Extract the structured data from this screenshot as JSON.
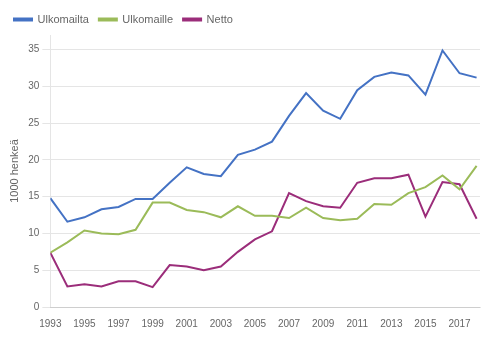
{
  "chart_data": {
    "type": "line",
    "ylabel": "1000 henkeä",
    "x": [
      1993,
      1994,
      1995,
      1996,
      1997,
      1998,
      1999,
      2000,
      2001,
      2002,
      2003,
      2004,
      2005,
      2006,
      2007,
      2008,
      2009,
      2010,
      2011,
      2012,
      2013,
      2014,
      2015,
      2016,
      2017,
      2018
    ],
    "series": [
      {
        "name": "Ulkomailta",
        "color": "#4472c4",
        "values": [
          14.8,
          11.6,
          12.2,
          13.3,
          13.6,
          14.7,
          14.7,
          16.9,
          19.0,
          18.1,
          17.8,
          20.7,
          21.4,
          22.5,
          26.0,
          29.1,
          26.7,
          25.6,
          29.5,
          31.3,
          31.9,
          31.5,
          28.9,
          34.9,
          31.8,
          31.2
        ]
      },
      {
        "name": "Ulkomaille",
        "color": "#9bbb59",
        "values": [
          7.4,
          8.8,
          10.4,
          10.0,
          9.9,
          10.5,
          14.2,
          14.2,
          13.2,
          12.9,
          12.2,
          13.7,
          12.4,
          12.4,
          12.1,
          13.5,
          12.1,
          11.8,
          12.0,
          14.0,
          13.9,
          15.5,
          16.3,
          17.9,
          16.0,
          19.2
        ]
      },
      {
        "name": "Netto",
        "color": "#9b2d7a",
        "values": [
          7.4,
          2.8,
          3.1,
          2.8,
          3.5,
          3.5,
          2.7,
          5.7,
          5.5,
          5.0,
          5.5,
          7.5,
          9.2,
          10.3,
          15.5,
          14.4,
          13.7,
          13.5,
          16.9,
          17.5,
          17.5,
          18.0,
          12.3,
          17.0,
          16.7,
          12.0
        ]
      }
    ],
    "xlim": [
      1993,
      2018.2
    ],
    "xticks": [
      1993,
      1995,
      1997,
      1999,
      2001,
      2003,
      2005,
      2007,
      2009,
      2011,
      2013,
      2015,
      2017
    ],
    "ylim": [
      0,
      37
    ],
    "yticks": [
      0,
      5,
      10,
      15,
      20,
      25,
      30,
      35
    ],
    "grid": true,
    "legend": "upper left"
  }
}
